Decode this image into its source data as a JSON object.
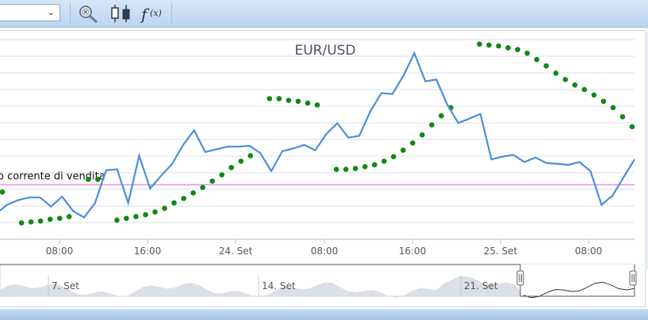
{
  "toolbar": {
    "select_value": "",
    "buttons": [
      {
        "name": "zoom-reset-button",
        "icon": "magnifier-x-icon"
      },
      {
        "name": "chart-type-button",
        "icon": "candlestick-icon"
      },
      {
        "name": "indicators-button",
        "icon": "function-icon",
        "label": "f(x)"
      }
    ]
  },
  "colors": {
    "price_line": "#4a8fdb",
    "indicator_dots": "#118811",
    "reference_line": "#f28ee0",
    "grid": "#dcdcf0",
    "navigator_fill": "#d7dbe3"
  },
  "chart_data": {
    "type": "line",
    "title": "EUR/USD",
    "x_ticks": [
      "08:00",
      "16:00",
      "24. Set",
      "08:00",
      "16:00",
      "25. Set",
      "08:00"
    ],
    "y_grid_count": 12,
    "reference_line_label": "o corrente di vendita",
    "reference_level": 0.6,
    "series": [
      {
        "values": [
          0.28,
          0.38,
          0.43,
          0.46,
          0.46,
          0.36,
          0.47,
          0.31,
          0.24,
          0.4,
          0.76,
          0.77,
          0.4,
          0.92,
          0.56,
          0.7,
          0.83,
          1.04,
          1.2,
          0.96,
          0.99,
          1.02,
          1.02,
          1.03,
          0.95,
          0.75,
          0.97,
          1.0,
          1.04,
          0.98,
          1.16,
          1.28,
          1.12,
          1.14,
          1.41,
          1.61,
          1.6,
          1.8,
          2.05,
          1.74,
          1.76,
          1.48,
          1.28,
          1.33,
          1.38,
          0.88,
          0.91,
          0.93,
          0.85,
          0.9,
          0.84,
          0.83,
          0.82,
          0.85,
          0.75,
          0.38,
          0.48,
          0.68,
          0.88
        ]
      },
      {
        "type": "scatter",
        "values": [
          0.52,
          null,
          0.18,
          0.19,
          0.2,
          0.22,
          0.23,
          0.25,
          null,
          0.66,
          0.66,
          null,
          0.21,
          0.23,
          0.25,
          0.27,
          0.3,
          0.34,
          0.4,
          0.45,
          0.51,
          0.57,
          0.64,
          0.71,
          0.79,
          0.86,
          0.92,
          null,
          1.55,
          1.55,
          1.53,
          1.52,
          1.5,
          1.48,
          null,
          0.77,
          0.77,
          0.78,
          0.8,
          0.82,
          0.86,
          0.91,
          0.98,
          1.06,
          1.15,
          1.26,
          1.36,
          1.45,
          null,
          null,
          2.15,
          2.14,
          2.13,
          2.11,
          2.09,
          2.05,
          1.98,
          1.91,
          1.83,
          1.76,
          1.7,
          1.65,
          1.59,
          1.52,
          1.45,
          1.35,
          1.24
        ]
      }
    ],
    "grid": true,
    "legend": false
  },
  "navigator": {
    "labels": [
      "7. Set",
      "14. Set",
      "21. Set"
    ],
    "selection_start": 0.82,
    "selection_end": 1.0
  }
}
